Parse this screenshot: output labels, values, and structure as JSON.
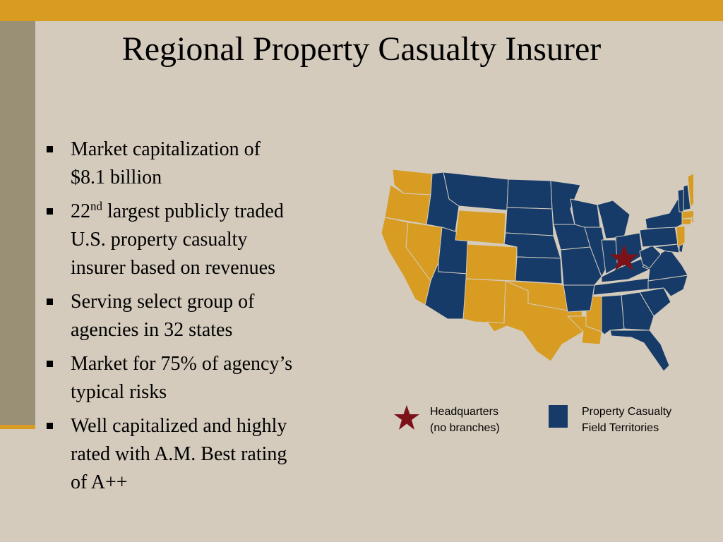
{
  "title": "Regional Property Casualty Insurer",
  "bullets": [
    {
      "lines": [
        "Market capitalization of",
        "$8.1 billion"
      ]
    },
    {
      "num": "22",
      "sup": "nd",
      "rest": " largest publicly traded",
      "lines": [
        "U.S. property casualty",
        "insurer based on revenues"
      ]
    },
    {
      "lines": [
        "Serving select group of",
        "agencies in 32 states"
      ]
    },
    {
      "lines": [
        "Market for 75% of agency’s",
        "typical risks"
      ]
    },
    {
      "lines": [
        "Well capitalized and highly",
        "rated with A.M. Best rating",
        "of A++"
      ]
    }
  ],
  "legend": {
    "headquarters": [
      "Headquarters",
      "(no branches)"
    ],
    "territories": [
      "Property Casualty",
      "Field Territories"
    ]
  },
  "colors": {
    "field_territory": "#163b68",
    "other_state": "#d89c22",
    "headquarters_star": "#7b1218",
    "accent_bar": "#d89c22",
    "background": "#d4cbbd"
  },
  "icons": {
    "headquarters": "star-icon",
    "territory": "square-swatch-icon"
  }
}
